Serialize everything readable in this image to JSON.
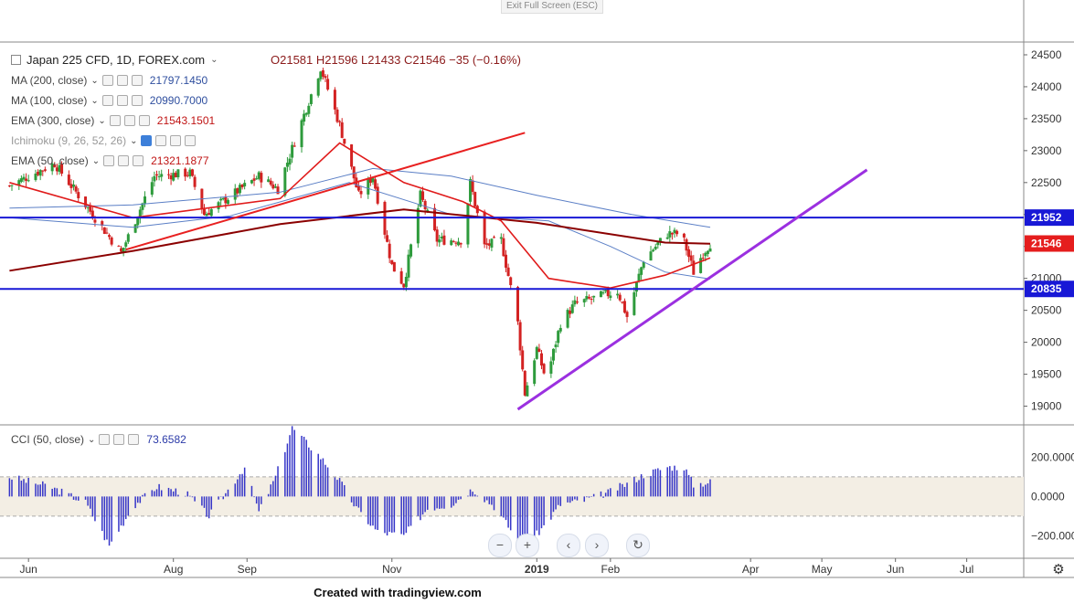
{
  "toolbar": {
    "exit_fullscreen": "Exit Full Screen (ESC)"
  },
  "symbol": {
    "name": "Japan 225 CFD, 1D, FOREX.com",
    "ohlc": "O21581  H21596  L21433  C21546  −35 (−0.16%)"
  },
  "indicators": [
    {
      "label": "MA (200, close)",
      "value": "21797.1450",
      "color": "#2f4f9f"
    },
    {
      "label": "MA (100, close)",
      "value": "20990.7000",
      "color": "#2f4f9f"
    },
    {
      "label": "EMA (300, close)",
      "value": "21543.1501",
      "color": "#c01414"
    },
    {
      "label": "Ichimoku (9, 26, 52, 26)",
      "value": "",
      "color": "#3d7fd9"
    },
    {
      "label": "EMA (50, close)",
      "value": "21321.1877",
      "color": "#c01414"
    }
  ],
  "cci": {
    "label": "CCI (50, close)",
    "value": "73.6582"
  },
  "credit": "Created with tradingview.com",
  "colors": {
    "up": "#2e9b3c",
    "down": "#d32222",
    "ma": "#5b7fc6",
    "ema300": "#8b0000",
    "ema50": "#e01b1b",
    "hline": "#1818d6",
    "trend_purple": "#9b30e0",
    "trend_red": "#e82020",
    "cci": "#3535c8",
    "cci_band": "#f3eee4"
  },
  "chart_data": {
    "type": "candlestick",
    "title": "Japan 225 CFD, 1D, FOREX.com",
    "x_ticks": [
      "Jun",
      "Aug",
      "Sep",
      "Nov",
      "2019",
      "Feb",
      "Apr",
      "May",
      "Jun",
      "Jul"
    ],
    "y_ticks": [
      19000,
      19500,
      20000,
      20500,
      21000,
      21500,
      22000,
      22500,
      23000,
      23500,
      24000,
      24500
    ],
    "ylim": [
      18750,
      24700
    ],
    "horizontal_levels": [
      {
        "label": "21952",
        "value": 21952
      },
      {
        "label": "20835",
        "value": 20835
      }
    ],
    "last_price_label": "21546",
    "close_path": [
      {
        "date": "2018-05-24",
        "close": 22450
      },
      {
        "date": "2018-06-12",
        "close": 22800
      },
      {
        "date": "2018-07-02",
        "close": 21800
      },
      {
        "date": "2018-07-10",
        "close": 21400
      },
      {
        "date": "2018-07-24",
        "close": 22600
      },
      {
        "date": "2018-08-08",
        "close": 22650
      },
      {
        "date": "2018-08-14",
        "close": 22000
      },
      {
        "date": "2018-09-06",
        "close": 22600
      },
      {
        "date": "2018-09-14",
        "close": 22400
      },
      {
        "date": "2018-10-02",
        "close": 24300
      },
      {
        "date": "2018-10-10",
        "close": 23400
      },
      {
        "date": "2018-10-18",
        "close": 22300
      },
      {
        "date": "2018-10-24",
        "close": 22600
      },
      {
        "date": "2018-11-01",
        "close": 21200
      },
      {
        "date": "2018-11-06",
        "close": 20900
      },
      {
        "date": "2018-11-13",
        "close": 22300
      },
      {
        "date": "2018-11-20",
        "close": 21600
      },
      {
        "date": "2018-12-01",
        "close": 21600
      },
      {
        "date": "2018-12-04",
        "close": 22500
      },
      {
        "date": "2018-12-10",
        "close": 21500
      },
      {
        "date": "2018-12-17",
        "close": 21600
      },
      {
        "date": "2018-12-24",
        "close": 20300
      },
      {
        "date": "2018-12-27",
        "close": 19200
      },
      {
        "date": "2019-01-01",
        "close": 19900
      },
      {
        "date": "2019-01-05",
        "close": 19400
      },
      {
        "date": "2019-01-11",
        "close": 20300
      },
      {
        "date": "2019-01-17",
        "close": 20600
      },
      {
        "date": "2019-01-26",
        "close": 20700
      },
      {
        "date": "2019-02-04",
        "close": 20800
      },
      {
        "date": "2019-02-08",
        "close": 20400
      },
      {
        "date": "2019-02-15",
        "close": 21300
      },
      {
        "date": "2019-02-25",
        "close": 21700
      },
      {
        "date": "2019-03-03",
        "close": 21700
      },
      {
        "date": "2019-03-08",
        "close": 21100
      },
      {
        "date": "2019-03-12",
        "close": 21400
      },
      {
        "date": "2019-03-15",
        "close": 21546
      }
    ],
    "series": [
      {
        "name": "MA (200, close)",
        "points": [
          [
            "2018-05-24",
            22100
          ],
          [
            "2018-07-15",
            22150
          ],
          [
            "2018-09-15",
            22350
          ],
          [
            "2018-10-24",
            22720
          ],
          [
            "2018-11-26",
            22600
          ],
          [
            "2019-01-01",
            22300
          ],
          [
            "2019-02-10",
            22000
          ],
          [
            "2019-03-15",
            21800
          ]
        ]
      },
      {
        "name": "MA (100, close)",
        "points": [
          [
            "2018-05-24",
            21950
          ],
          [
            "2018-07-15",
            21800
          ],
          [
            "2018-08-25",
            21980
          ],
          [
            "2018-10-14",
            22500
          ],
          [
            "2018-11-26",
            22000
          ],
          [
            "2019-01-06",
            21900
          ],
          [
            "2019-02-01",
            21500
          ],
          [
            "2019-02-24",
            21100
          ],
          [
            "2019-03-15",
            20990
          ]
        ]
      },
      {
        "name": "EMA (300, close)",
        "points": [
          [
            "2018-05-24",
            21120
          ],
          [
            "2018-07-15",
            21430
          ],
          [
            "2018-09-15",
            21850
          ],
          [
            "2018-11-06",
            22080
          ],
          [
            "2019-01-01",
            21870
          ],
          [
            "2019-02-24",
            21560
          ],
          [
            "2019-03-15",
            21543
          ]
        ]
      },
      {
        "name": "EMA (50, close)",
        "points": [
          [
            "2018-05-24",
            22500
          ],
          [
            "2018-07-15",
            21950
          ],
          [
            "2018-09-15",
            22250
          ],
          [
            "2018-10-10",
            23120
          ],
          [
            "2018-11-06",
            22500
          ],
          [
            "2018-12-01",
            22200
          ],
          [
            "2018-12-17",
            21900
          ],
          [
            "2019-01-06",
            21000
          ],
          [
            "2019-02-01",
            20850
          ],
          [
            "2019-02-24",
            21050
          ],
          [
            "2019-03-15",
            21320
          ]
        ]
      }
    ],
    "trendlines": [
      {
        "name": "purple support",
        "from": [
          "2018-12-24",
          18950
        ],
        "to": [
          "2019-05-20",
          22700
        ]
      },
      {
        "name": "red resistance",
        "from": [
          "2018-07-12",
          21450
        ],
        "to": [
          "2018-12-27",
          23280
        ]
      }
    ],
    "cci": {
      "ylim": [
        -300,
        350
      ],
      "y_ticks": [
        -200,
        0,
        200
      ],
      "band": [
        -100,
        100
      ],
      "series": [
        [
          "2018-05-24",
          100
        ],
        [
          "2018-06-10",
          50
        ],
        [
          "2018-06-25",
          -30
        ],
        [
          "2018-07-05",
          -250
        ],
        [
          "2018-07-15",
          -50
        ],
        [
          "2018-07-25",
          50
        ],
        [
          "2018-08-06",
          20
        ],
        [
          "2018-08-16",
          -100
        ],
        [
          "2018-08-31",
          150
        ],
        [
          "2018-09-06",
          -80
        ],
        [
          "2018-09-13",
          100
        ],
        [
          "2018-09-20",
          350
        ],
        [
          "2018-10-02",
          200
        ],
        [
          "2018-10-10",
          80
        ],
        [
          "2018-10-17",
          -60
        ],
        [
          "2018-10-26",
          -180
        ],
        [
          "2018-11-06",
          -200
        ],
        [
          "2018-11-16",
          -60
        ],
        [
          "2018-11-26",
          -40
        ],
        [
          "2018-12-05",
          40
        ],
        [
          "2018-12-14",
          -50
        ],
        [
          "2018-12-24",
          -220
        ],
        [
          "2018-12-28",
          -250
        ],
        [
          "2019-01-04",
          -150
        ],
        [
          "2019-01-11",
          -40
        ],
        [
          "2019-01-21",
          -20
        ],
        [
          "2019-01-31",
          20
        ],
        [
          "2019-02-07",
          60
        ],
        [
          "2019-02-15",
          110
        ],
        [
          "2019-02-25",
          150
        ],
        [
          "2019-03-04",
          150
        ],
        [
          "2019-03-08",
          60
        ],
        [
          "2019-03-15",
          74
        ]
      ]
    }
  }
}
